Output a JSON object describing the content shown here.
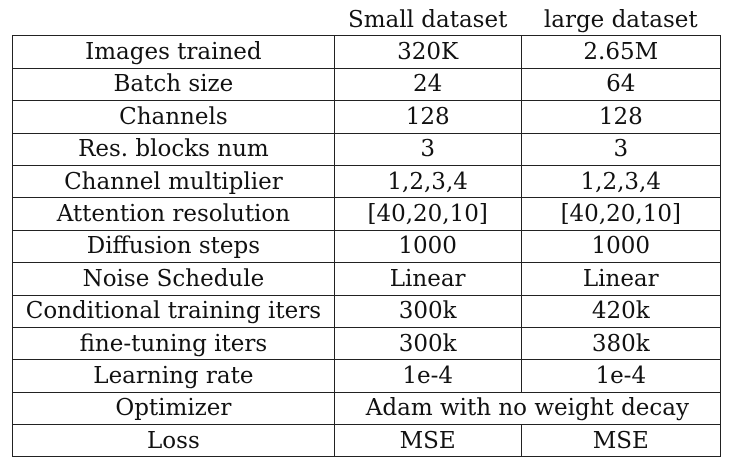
{
  "table": {
    "headers": [
      "",
      "Small dataset",
      "large dataset"
    ],
    "rows": [
      {
        "label": "Images trained",
        "small": "320K",
        "large": "2.65M"
      },
      {
        "label": "Batch size",
        "small": "24",
        "large": "64"
      },
      {
        "label": "Channels",
        "small": "128",
        "large": "128"
      },
      {
        "label": "Res. blocks num",
        "small": "3",
        "large": "3"
      },
      {
        "label": "Channel multiplier",
        "small": "1,2,3,4",
        "large": "1,2,3,4"
      },
      {
        "label": "Attention resolution",
        "small": "[40,20,10]",
        "large": "[40,20,10]"
      },
      {
        "label": "Diffusion steps",
        "small": "1000",
        "large": "1000"
      },
      {
        "label": "Noise Schedule",
        "small": "Linear",
        "large": "Linear"
      },
      {
        "label": "Conditional training iters",
        "small": "300k",
        "large": "420k"
      },
      {
        "label": "fine-tuning iters",
        "small": "300k",
        "large": "380k"
      },
      {
        "label": "Learning rate",
        "small": "1e-4",
        "large": "1e-4"
      },
      {
        "label": "Optimizer",
        "merged": "Adam with no weight decay"
      },
      {
        "label": "Loss",
        "small": "MSE",
        "large": "MSE"
      }
    ]
  }
}
